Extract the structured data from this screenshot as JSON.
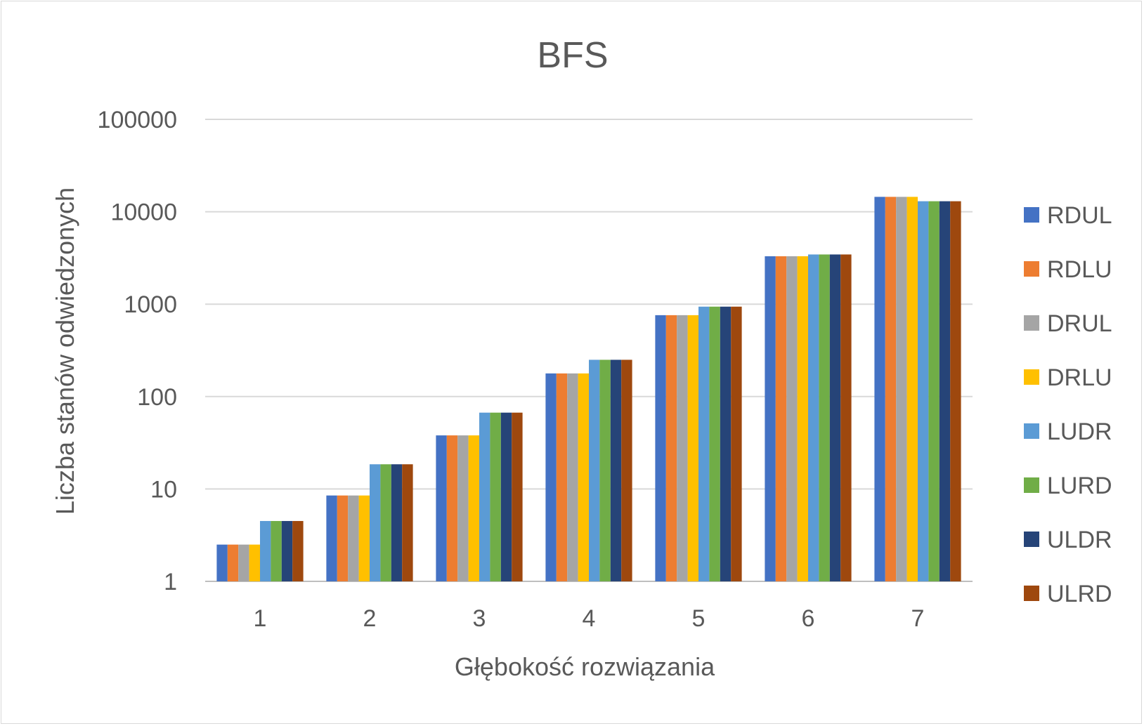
{
  "chart_data": {
    "type": "bar",
    "title": "BFS",
    "xlabel": "Głębokość rozwiązania",
    "ylabel": "Liczba stanów odwiedzonych",
    "y_scale": "log",
    "ylim": [
      1,
      100000
    ],
    "y_ticks": [
      "1",
      "10",
      "100",
      "1000",
      "10000",
      "100000"
    ],
    "categories": [
      "1",
      "2",
      "3",
      "4",
      "5",
      "6",
      "7"
    ],
    "grid": true,
    "legend_position": "right",
    "series": [
      {
        "name": "RDUL",
        "color": "#4472C4",
        "values": [
          2.5,
          8.5,
          38,
          178,
          760,
          3300,
          14500
        ]
      },
      {
        "name": "RDLU",
        "color": "#ED7D31",
        "values": [
          2.5,
          8.5,
          38,
          178,
          760,
          3300,
          14500
        ]
      },
      {
        "name": "DRUL",
        "color": "#A5A5A5",
        "values": [
          2.5,
          8.5,
          38,
          178,
          760,
          3300,
          14500
        ]
      },
      {
        "name": "DRLU",
        "color": "#FFC000",
        "values": [
          2.5,
          8.5,
          38,
          178,
          760,
          3300,
          14500
        ]
      },
      {
        "name": "LUDR",
        "color": "#5B9BD5",
        "values": [
          4.5,
          18.5,
          67,
          250,
          940,
          3450,
          13000
        ]
      },
      {
        "name": "LURD",
        "color": "#70AD47",
        "values": [
          4.5,
          18.5,
          67,
          250,
          940,
          3450,
          13000
        ]
      },
      {
        "name": "ULDR",
        "color": "#264478",
        "values": [
          4.5,
          18.5,
          67,
          250,
          940,
          3450,
          13000
        ]
      },
      {
        "name": "ULRD",
        "color": "#9E480E",
        "values": [
          4.5,
          18.5,
          67,
          250,
          940,
          3450,
          13000
        ]
      }
    ]
  }
}
